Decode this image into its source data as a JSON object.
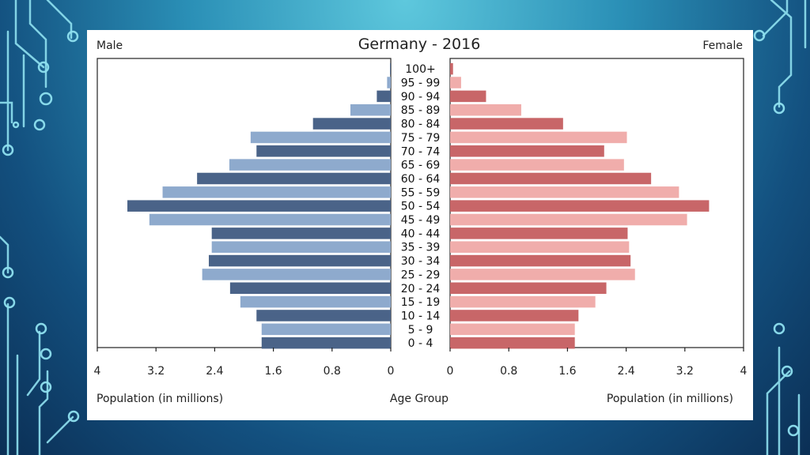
{
  "colors": {
    "male_dark": "#4a6388",
    "male_light": "#8eaacd",
    "female_dark": "#c86668",
    "female_light": "#f0adab",
    "frame": "#222222"
  },
  "background": {
    "theme": "circuit-board",
    "line_color": "#8fe1f0"
  },
  "chart_data": {
    "type": "bar",
    "orientation": "horizontal",
    "subtype": "population-pyramid",
    "title": "Germany - 2016",
    "left_label": "Male",
    "right_label": "Female",
    "xlabel_left": "Population (in millions)",
    "xlabel_center": "Age Group",
    "xlabel_right": "Population (in millions)",
    "xlim": [
      0,
      4
    ],
    "x_ticks_left": [
      "4",
      "3.2",
      "2.4",
      "1.6",
      "0.8",
      "0"
    ],
    "x_ticks_right": [
      "0",
      "0.8",
      "1.6",
      "2.4",
      "3.2",
      "4"
    ],
    "x_tick_values_left": [
      4,
      3.2,
      2.4,
      1.6,
      0.8,
      0
    ],
    "x_tick_values_right": [
      0,
      0.8,
      1.6,
      2.4,
      3.2,
      4
    ],
    "categories": [
      "100+",
      "95 - 99",
      "90 - 94",
      "85 - 89",
      "80 - 84",
      "75 - 79",
      "70 - 74",
      "65 - 69",
      "60 - 64",
      "55 - 59",
      "50 - 54",
      "45 - 49",
      "40 - 44",
      "35 - 39",
      "30 - 34",
      "25 - 29",
      "20 - 24",
      "15 - 19",
      "10 - 14",
      "5 - 9",
      "0 - 4"
    ],
    "series": [
      {
        "name": "Male",
        "side": "left",
        "values": [
          0.01,
          0.05,
          0.19,
          0.55,
          1.06,
          1.91,
          1.83,
          2.2,
          2.64,
          3.11,
          3.59,
          3.29,
          2.44,
          2.44,
          2.48,
          2.57,
          2.19,
          2.05,
          1.83,
          1.76,
          1.76
        ]
      },
      {
        "name": "Female",
        "side": "right",
        "values": [
          0.04,
          0.15,
          0.49,
          0.97,
          1.54,
          2.41,
          2.1,
          2.37,
          2.74,
          3.12,
          3.53,
          3.23,
          2.42,
          2.44,
          2.46,
          2.52,
          2.13,
          1.98,
          1.75,
          1.7,
          1.7
        ]
      }
    ],
    "grid": false
  }
}
